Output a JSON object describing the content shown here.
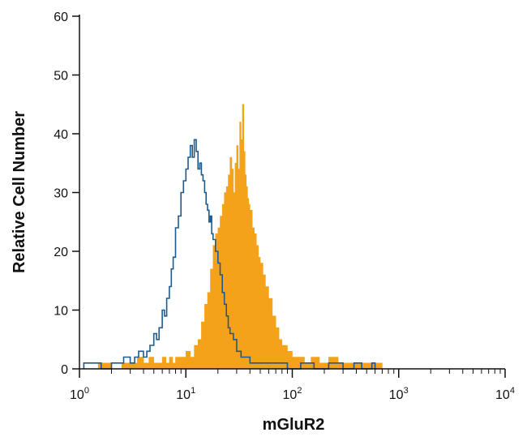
{
  "chart_data": {
    "type": "histogram",
    "title": "",
    "xlabel": "mGluR2",
    "ylabel": "Relative Cell Number",
    "x_scale": "log",
    "xlim": [
      1,
      10000
    ],
    "ylim": [
      0,
      60
    ],
    "x_tick_labels": [
      {
        "base": "10",
        "exp": "0"
      },
      {
        "base": "10",
        "exp": "1"
      },
      {
        "base": "10",
        "exp": "2"
      },
      {
        "base": "10",
        "exp": "3"
      },
      {
        "base": "10",
        "exp": "4"
      }
    ],
    "y_ticks": [
      0,
      10,
      20,
      30,
      40,
      50,
      60
    ],
    "grid": false,
    "series": [
      {
        "style": "filled",
        "color": "#F5A21B",
        "x": [
          1.2,
          1.5,
          2.0,
          2.5,
          3.0,
          3.5,
          4.0,
          4.5,
          5.0,
          5.5,
          6.0,
          6.5,
          7.0,
          7.5,
          8.0,
          9.0,
          10.0,
          11.0,
          12.0,
          13.0,
          14.0,
          15.0,
          16.0,
          17.0,
          18.0,
          19.0,
          20.0,
          21.0,
          22.0,
          23.0,
          24.0,
          25.0,
          26.0,
          27.0,
          28.0,
          29.0,
          30.0,
          31.0,
          32.0,
          33.0,
          34.0,
          35.0,
          36.0,
          37.0,
          38.0,
          39.0,
          40.0,
          42.0,
          44.0,
          46.0,
          48.0,
          50.0,
          53.0,
          56.0,
          60.0,
          65.0,
          70.0,
          75.0,
          80.0,
          90.0,
          100.0,
          115.0,
          130.0,
          150.0,
          180.0,
          220.0,
          270.0,
          350.0,
          450.0,
          550.0,
          650.0,
          700.0
        ],
        "y": [
          0,
          1,
          0,
          1,
          1,
          2,
          1,
          2,
          1,
          1,
          2,
          1,
          2,
          1,
          2,
          2,
          3,
          2,
          4,
          5,
          8,
          11,
          13,
          17,
          21,
          23,
          24,
          26,
          28,
          30,
          31,
          33,
          36,
          34,
          30,
          35,
          38,
          34,
          42,
          39,
          45,
          37,
          33,
          31,
          29,
          28,
          27,
          24,
          23,
          21,
          19,
          18,
          16,
          14,
          12,
          9,
          7,
          5,
          4,
          3,
          2,
          2,
          1,
          2,
          1,
          2,
          1,
          1,
          1,
          1,
          1,
          0
        ]
      },
      {
        "style": "outline",
        "color": "#1F5A8C",
        "x": [
          1.1,
          1.3,
          1.6,
          2.0,
          2.3,
          2.6,
          3.0,
          3.3,
          3.6,
          4.0,
          4.3,
          4.6,
          5.0,
          5.3,
          5.6,
          6.0,
          6.3,
          6.6,
          7.0,
          7.3,
          7.6,
          8.0,
          8.5,
          9.0,
          9.5,
          10.0,
          10.5,
          11.0,
          11.5,
          12.0,
          12.5,
          13.0,
          13.5,
          14.0,
          14.5,
          15.0,
          15.5,
          16.0,
          16.5,
          17.0,
          17.5,
          18.0,
          19.0,
          20.0,
          21.0,
          22.0,
          23.0,
          24.0,
          25.0,
          26.0,
          28.0,
          30.0,
          33.0,
          36.0,
          40.0,
          45.0,
          55.0,
          70.0,
          90.0,
          120.0,
          160.0,
          220.0,
          300.0,
          380.0,
          450.0,
          560.0,
          600.0
        ],
        "y": [
          1,
          1,
          0,
          1,
          1,
          2,
          1,
          2,
          3,
          2,
          3,
          4,
          6,
          5,
          7,
          10,
          9,
          12,
          14,
          17,
          19,
          24,
          26,
          30,
          32,
          34,
          36,
          38,
          36,
          39,
          37,
          34,
          35,
          33,
          32,
          30,
          28,
          27,
          25,
          26,
          23,
          22,
          20,
          18,
          16,
          13,
          11,
          9,
          7,
          6,
          5,
          3,
          2,
          2,
          1,
          1,
          1,
          1,
          0,
          1,
          0,
          1,
          0,
          1,
          0,
          1,
          0
        ]
      }
    ]
  }
}
